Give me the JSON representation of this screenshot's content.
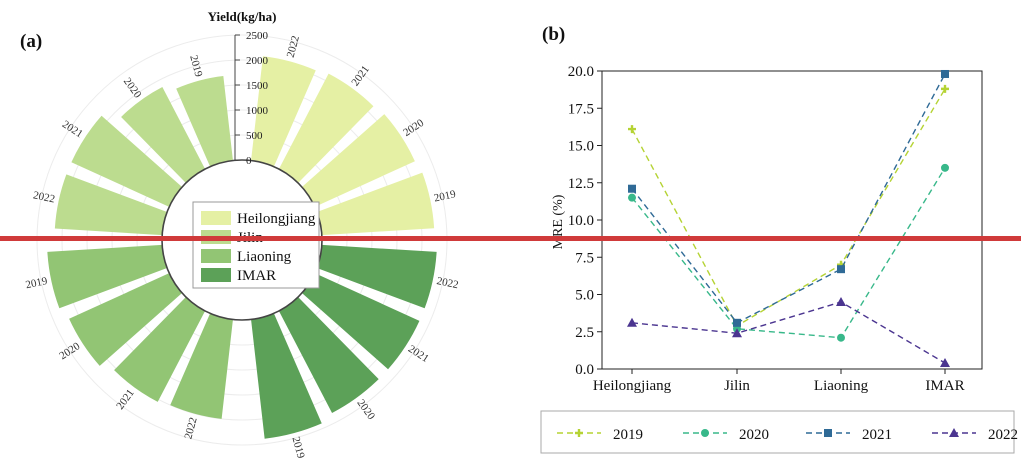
{
  "panel_a_label": "(a)",
  "panel_b_label": "(b)",
  "colors": {
    "Heilongjiang": "#e5f0a4",
    "Jilin": "#bcdc8f",
    "Liaoning": "#92c574",
    "IMAR": "#5ca158",
    "2019": "#b5d334",
    "2020": "#38b88a",
    "2021": "#2f6a96",
    "2022": "#4b3590",
    "overlay_bar": "#d03a3a"
  },
  "chart_data": [
    {
      "type": "bar",
      "subtype": "circular-bar",
      "yield_axis_title": "Yield(kg/ha)",
      "ylim": [
        0,
        2500
      ],
      "yticks": [
        "0",
        "500",
        "1000",
        "1500",
        "2000",
        "2500"
      ],
      "legend": [
        "Heilongjiang",
        "Jilin",
        "Liaoning",
        "IMAR"
      ],
      "legend_placement": "center",
      "series": [
        {
          "name": "Heilongjiang",
          "years": [
            "2022",
            "2021",
            "2020",
            "2019"
          ],
          "values": [
            2100,
            2150,
            2200,
            2250
          ]
        },
        {
          "name": "IMAR",
          "years": [
            "2022",
            "2021",
            "2020",
            "2019"
          ],
          "values": [
            2300,
            2300,
            2300,
            2400
          ]
        },
        {
          "name": "Liaoning",
          "years": [
            "2019",
            "2020",
            "2021",
            "2022"
          ],
          "values": [
            2300,
            2200,
            2050,
            2000
          ]
        },
        {
          "name": "Jilin",
          "years": [
            "2022",
            "2021",
            "2020",
            "2019"
          ],
          "values": [
            2150,
            2150,
            1850,
            1700
          ]
        }
      ]
    },
    {
      "type": "line",
      "categories": [
        "Heilongjiang",
        "Jilin",
        "Liaoning",
        "IMAR"
      ],
      "ylabel": "MRE (%)",
      "xlabel": "",
      "ylim": [
        0,
        20
      ],
      "yticks": [
        "0.0",
        "2.5",
        "5.0",
        "7.5",
        "10.0",
        "12.5",
        "15.0",
        "17.5",
        "20.0"
      ],
      "grid": false,
      "legend_placement": "bottom",
      "series": [
        {
          "name": "2019",
          "marker": "plus",
          "values": [
            16.1,
            2.9,
            7.0,
            18.8
          ]
        },
        {
          "name": "2020",
          "marker": "circle",
          "values": [
            11.5,
            2.7,
            2.1,
            13.5
          ]
        },
        {
          "name": "2021",
          "marker": "square",
          "values": [
            12.1,
            3.1,
            6.7,
            19.8
          ]
        },
        {
          "name": "2022",
          "marker": "triangle",
          "values": [
            3.1,
            2.4,
            4.5,
            0.4
          ]
        }
      ]
    }
  ]
}
